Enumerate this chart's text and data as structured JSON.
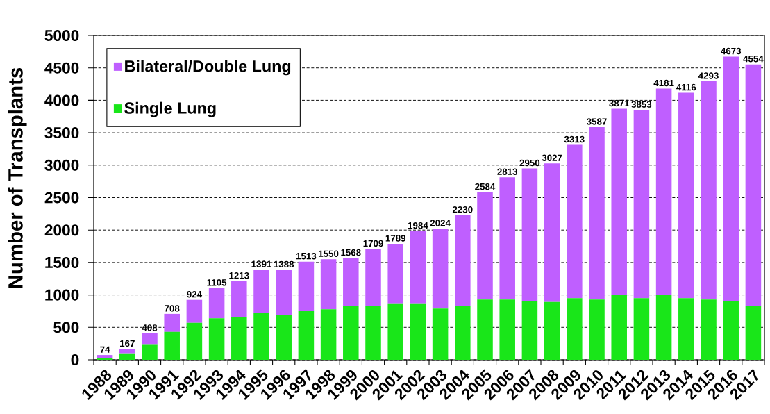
{
  "chart_data": {
    "type": "bar",
    "stacked": true,
    "ylabel": "Number of Transplants",
    "categories": [
      "1988",
      "1989",
      "1990",
      "1991",
      "1992",
      "1993",
      "1994",
      "1995",
      "1996",
      "1997",
      "1998",
      "1999",
      "2000",
      "2001",
      "2002",
      "2003",
      "2004",
      "2005",
      "2006",
      "2007",
      "2008",
      "2009",
      "2010",
      "2011",
      "2012",
      "2013",
      "2014",
      "2015",
      "2016",
      "2017"
    ],
    "series": [
      {
        "name": "Single Lung",
        "color": "#19e619",
        "values": [
          30,
          100,
          240,
          430,
          570,
          640,
          660,
          720,
          690,
          760,
          780,
          830,
          830,
          870,
          870,
          790,
          830,
          930,
          930,
          910,
          890,
          950,
          930,
          1000,
          950,
          1000,
          950,
          930,
          910,
          830
        ]
      },
      {
        "name": "Bilateral/Double Lung",
        "color": "#bf5fff",
        "values": [
          44,
          67,
          168,
          278,
          354,
          465,
          553,
          671,
          698,
          753,
          770,
          738,
          879,
          919,
          1114,
          1234,
          1400,
          1654,
          1883,
          2040,
          2137,
          2363,
          2657,
          2871,
          2903,
          3181,
          3166,
          3363,
          3763,
          3724
        ]
      }
    ],
    "totals": [
      "74",
      "167",
      "408",
      "708",
      "924",
      "1105",
      "1213",
      "1391",
      "1388",
      "1513",
      "1550",
      "1568",
      "1709",
      "1789",
      "1984",
      "2024",
      "2230",
      "2584",
      "2813",
      "2950",
      "3027",
      "3313",
      "3587",
      "3871",
      "3853",
      "4181",
      "4116",
      "4293",
      "4673",
      "4554"
    ],
    "ylim": [
      0,
      5000
    ],
    "yticks": [
      0,
      500,
      1000,
      1500,
      2000,
      2500,
      3000,
      3500,
      4000,
      4500,
      5000
    ],
    "grid": "y",
    "legend": "top left"
  }
}
